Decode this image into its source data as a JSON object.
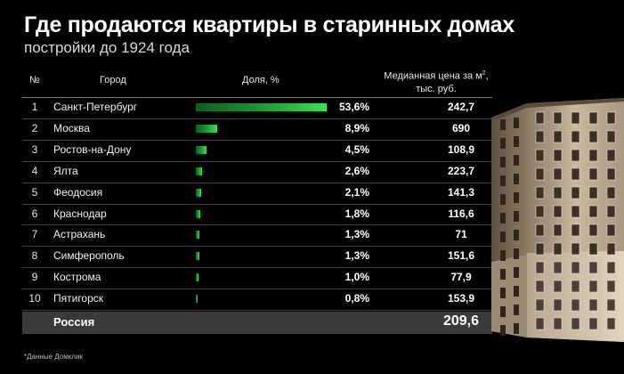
{
  "title": "Где продаются квартиры в старинных домах",
  "subtitle": "постройки до 1924 года",
  "headers": {
    "num": "№",
    "city": "Город",
    "share": "Доля, %",
    "price_line1": "Медианная цена за м",
    "price_sup": "2",
    "price_suffix": ",",
    "price_line2": "тыс. руб."
  },
  "chart_data": {
    "type": "table",
    "title": "Где продаются квартиры в старинных домах",
    "subtitle": "постройки до 1924 года",
    "columns": [
      "№",
      "Город",
      "Доля, %",
      "Медианная цена за м², тыс. руб."
    ],
    "rows": [
      {
        "num": "1",
        "city": "Санкт-Петербург",
        "share": 53.6,
        "share_label": "53,6%",
        "price": "242,7"
      },
      {
        "num": "2",
        "city": "Москва",
        "share": 8.9,
        "share_label": "8,9%",
        "price": "690"
      },
      {
        "num": "3",
        "city": "Ростов-на-Дону",
        "share": 4.5,
        "share_label": "4,5%",
        "price": "108,9"
      },
      {
        "num": "4",
        "city": "Ялта",
        "share": 2.6,
        "share_label": "2,6%",
        "price": "223,7"
      },
      {
        "num": "5",
        "city": "Феодосия",
        "share": 2.1,
        "share_label": "2,1%",
        "price": "141,3"
      },
      {
        "num": "6",
        "city": "Краснодар",
        "share": 1.8,
        "share_label": "1,8%",
        "price": "116,6"
      },
      {
        "num": "7",
        "city": "Астрахань",
        "share": 1.3,
        "share_label": "1,3%",
        "price": "71"
      },
      {
        "num": "8",
        "city": "Симферополь",
        "share": 1.3,
        "share_label": "1,3%",
        "price": "151,6"
      },
      {
        "num": "9",
        "city": "Кострома",
        "share": 1.0,
        "share_label": "1,0%",
        "price": "77,9"
      },
      {
        "num": "10",
        "city": "Пятигорск",
        "share": 0.8,
        "share_label": "0,8%",
        "price": "153,9"
      }
    ],
    "total": {
      "city": "Россия",
      "price": "209,6"
    }
  },
  "footnote": "*Данные Домклик",
  "colors": {
    "background": "#000000",
    "bar_dark": "#0a5e1e",
    "bar_light": "#3ae05a",
    "total_row": "#3a3a3a"
  }
}
